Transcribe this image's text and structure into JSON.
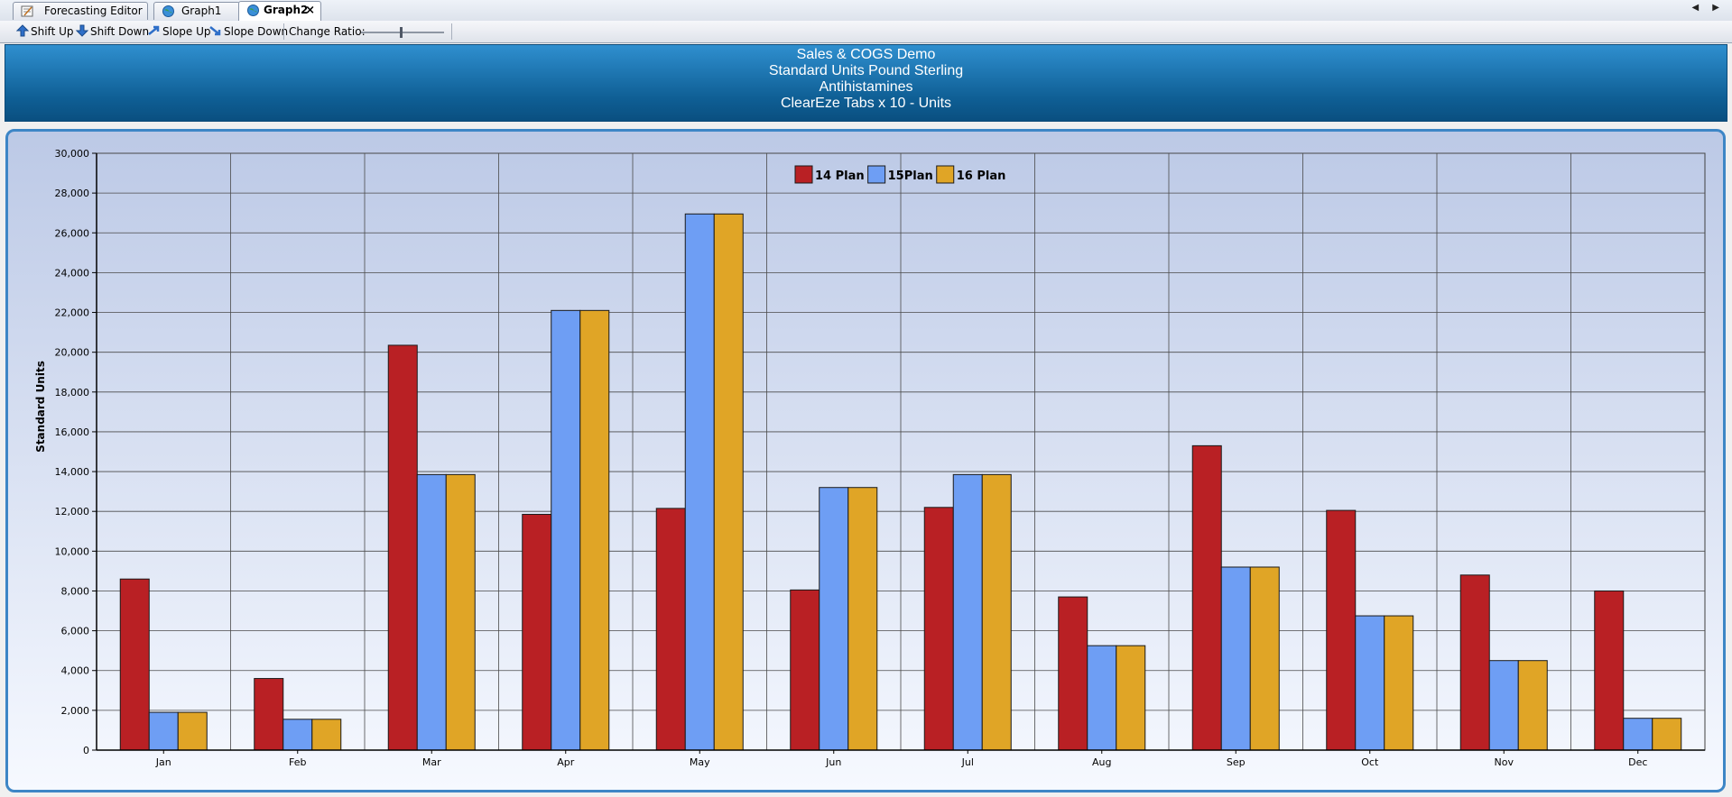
{
  "tabs": [
    {
      "label": "Forecasting Editor",
      "icon": "editor-icon",
      "active": false
    },
    {
      "label": "Graph1",
      "icon": "globe-icon",
      "active": false
    },
    {
      "label": "Graph2",
      "icon": "globe-icon",
      "active": true
    }
  ],
  "tab_close_symbol": "×",
  "tab_nav_symbols": "◀ ▶",
  "toolbar": {
    "shift_up": "Shift Up",
    "shift_down": "Shift Down",
    "slope_up": "Slope Up",
    "slope_down": "Slope Down",
    "change_ratio": "Change Ratio:"
  },
  "banner": {
    "line1": "Sales & COGS Demo",
    "line2": "Standard Units Pound Sterling",
    "line3": "Antihistamines",
    "line4": "ClearEze Tabs x 10 - Units"
  },
  "chart_data": {
    "type": "bar",
    "title": "",
    "xlabel": "",
    "ylabel": "Standard Units",
    "ylim": [
      0,
      30000
    ],
    "ytick_step": 2000,
    "grid": true,
    "legend_position": "top-center",
    "categories": [
      "Jan",
      "Feb",
      "Mar",
      "Apr",
      "May",
      "Jun",
      "Jul",
      "Aug",
      "Sep",
      "Oct",
      "Nov",
      "Dec"
    ],
    "series": [
      {
        "name": "14 Plan",
        "color": "#b92024",
        "values": [
          8600,
          3600,
          20350,
          11850,
          12150,
          8050,
          12200,
          7700,
          15300,
          12050,
          8800,
          8000
        ]
      },
      {
        "name": "15Plan",
        "color": "#6e9ef4",
        "values": [
          1900,
          1550,
          13850,
          22100,
          26950,
          13200,
          13850,
          5250,
          9200,
          6750,
          4500,
          1600
        ]
      },
      {
        "name": "16 Plan",
        "color": "#e0a526",
        "values": [
          1900,
          1550,
          13850,
          22100,
          26950,
          13200,
          13850,
          5250,
          9200,
          6750,
          4500,
          1600
        ]
      }
    ]
  }
}
